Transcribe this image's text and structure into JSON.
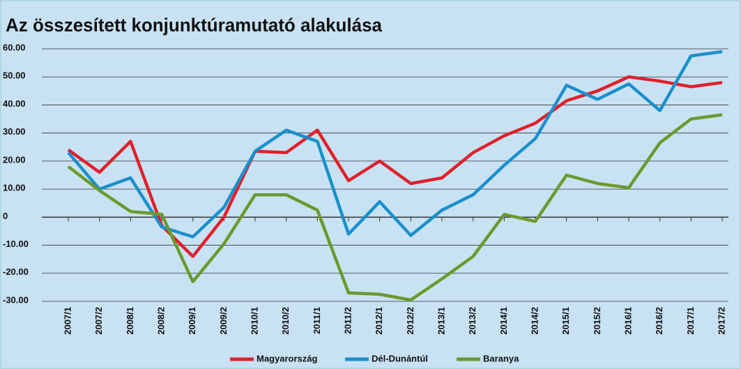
{
  "chart_data": {
    "type": "line",
    "title": "Az összesített konjunktúramutató alakulása",
    "categories": [
      "2007/1",
      "2007/2",
      "2008/1",
      "2008/2",
      "2009/1",
      "2009/2",
      "2010/1",
      "2010/2",
      "2011/1",
      "2011/2",
      "2012/1",
      "2012/2",
      "2013/1",
      "2013/2",
      "2014/1",
      "2014/2",
      "2015/1",
      "2015/2",
      "2016/1",
      "2016/2",
      "2017/1",
      "2017/2"
    ],
    "series": [
      {
        "name": "Magyarország",
        "color": "#e0202a",
        "values": [
          24,
          16,
          27,
          -3,
          -14,
          0,
          23.5,
          23,
          31,
          13,
          20,
          12,
          14,
          23,
          29,
          33.5,
          41.5,
          45,
          50,
          48.5,
          46.5,
          48
        ]
      },
      {
        "name": "Dél-Dunántúl",
        "color": "#1a8fcc",
        "values": [
          23,
          10,
          14,
          -3.5,
          -7,
          3.5,
          23.5,
          31,
          27,
          -6,
          5.5,
          -6.5,
          2.5,
          8,
          18.5,
          28,
          47,
          42,
          47.5,
          38,
          57.5,
          59
        ]
      },
      {
        "name": "Baranya",
        "color": "#6a9a2e",
        "values": [
          18,
          9.5,
          2,
          1,
          -23,
          -9.5,
          8,
          8,
          2.5,
          -27,
          -27.5,
          -29.5,
          -22,
          -14,
          1,
          -1.5,
          15,
          12,
          10.5,
          26.5,
          35,
          36.5
        ]
      }
    ],
    "ylim": [
      -30,
      60
    ],
    "yticks": [
      {
        "value": -30,
        "label": "-30.00"
      },
      {
        "value": -20,
        "label": "-20.00"
      },
      {
        "value": -10,
        "label": "-10.00"
      },
      0,
      {
        "value": 10,
        "label": "10.00"
      },
      {
        "value": 20,
        "label": "20.00"
      },
      {
        "value": 30,
        "label": "30.00"
      },
      {
        "value": 40,
        "label": "40.00"
      },
      {
        "value": 50,
        "label": "50.00"
      },
      {
        "value": 60,
        "label": "60.00"
      }
    ],
    "grid": true,
    "legend": "bottom"
  }
}
